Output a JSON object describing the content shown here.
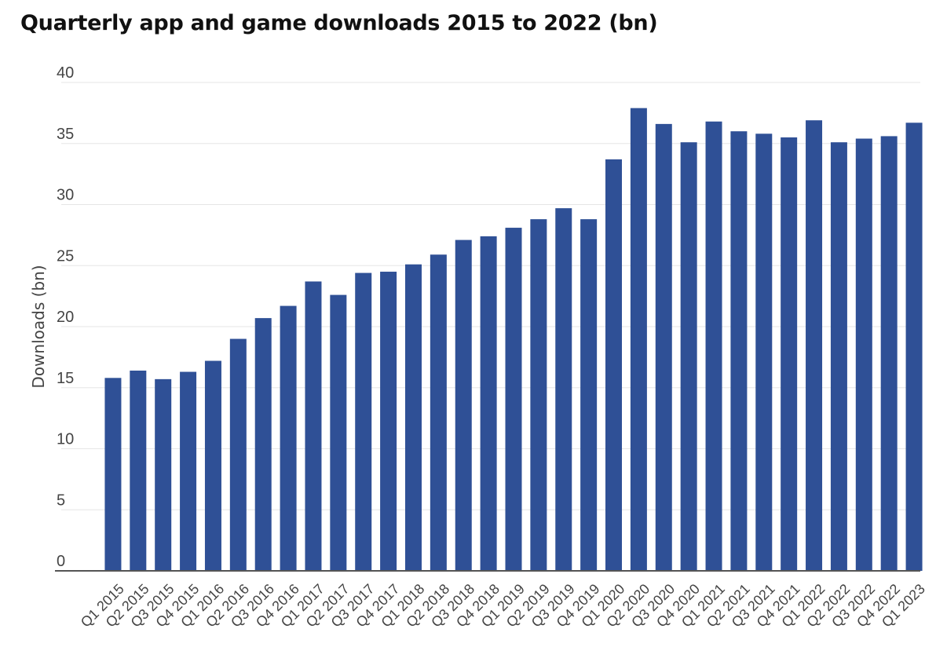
{
  "chart_data": {
    "type": "bar",
    "title": "Quarterly app and game downloads 2015 to 2022 (bn)",
    "xlabel": "",
    "ylabel": "Downloads (bn)",
    "ylim": [
      0,
      40
    ],
    "yticks": [
      0,
      5,
      10,
      15,
      20,
      25,
      30,
      35,
      40
    ],
    "grid": true,
    "bar_color": "#2f5096",
    "categories": [
      "Q1 2015",
      "Q2 2015",
      "Q3 2015",
      "Q4 2015",
      "Q1 2016",
      "Q2 2016",
      "Q3 2016",
      "Q4 2016",
      "Q1 2017",
      "Q2 2017",
      "Q3 2017",
      "Q4 2017",
      "Q1 2018",
      "Q2 2018",
      "Q3 2018",
      "Q4 2018",
      "Q1 2019",
      "Q2 2019",
      "Q3 2019",
      "Q4 2019",
      "Q1 2020",
      "Q2 2020",
      "Q3 2020",
      "Q4 2020",
      "Q1 2021",
      "Q2 2021",
      "Q3 2021",
      "Q4 2021",
      "Q1 2022",
      "Q2 2022",
      "Q3 2022",
      "Q4 2022",
      "Q1 2023"
    ],
    "values": [
      15.8,
      16.4,
      15.7,
      16.3,
      17.2,
      19.0,
      20.7,
      21.7,
      23.7,
      22.6,
      24.4,
      24.5,
      25.1,
      25.9,
      27.1,
      27.4,
      28.1,
      28.8,
      29.7,
      28.8,
      33.7,
      37.9,
      36.6,
      35.1,
      36.8,
      36.0,
      35.8,
      35.5,
      36.9,
      35.1,
      35.4,
      35.6,
      36.7
    ]
  }
}
